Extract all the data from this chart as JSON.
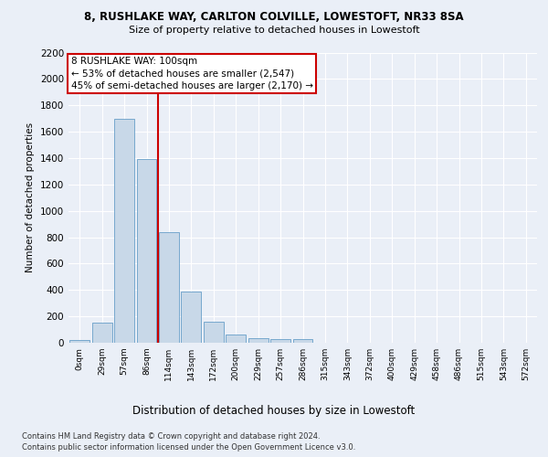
{
  "title1": "8, RUSHLAKE WAY, CARLTON COLVILLE, LOWESTOFT, NR33 8SA",
  "title2": "Size of property relative to detached houses in Lowestoft",
  "xlabel": "Distribution of detached houses by size in Lowestoft",
  "ylabel": "Number of detached properties",
  "footer1": "Contains HM Land Registry data © Crown copyright and database right 2024.",
  "footer2": "Contains public sector information licensed under the Open Government Licence v3.0.",
  "annotation_line1": "8 RUSHLAKE WAY: 100sqm",
  "annotation_line2": "← 53% of detached houses are smaller (2,547)",
  "annotation_line3": "45% of semi-detached houses are larger (2,170) →",
  "bar_labels": [
    "0sqm",
    "29sqm",
    "57sqm",
    "86sqm",
    "114sqm",
    "143sqm",
    "172sqm",
    "200sqm",
    "229sqm",
    "257sqm",
    "286sqm",
    "315sqm",
    "343sqm",
    "372sqm",
    "400sqm",
    "429sqm",
    "458sqm",
    "486sqm",
    "515sqm",
    "543sqm",
    "572sqm"
  ],
  "bar_values": [
    20,
    155,
    1700,
    1390,
    835,
    385,
    160,
    65,
    35,
    28,
    28,
    0,
    0,
    0,
    0,
    0,
    0,
    0,
    0,
    0,
    0
  ],
  "bar_color": "#c8d8e8",
  "bar_edge_color": "#5090c0",
  "red_line_x": 3.5,
  "ylim": [
    0,
    2200
  ],
  "yticks": [
    0,
    200,
    400,
    600,
    800,
    1000,
    1200,
    1400,
    1600,
    1800,
    2000,
    2200
  ],
  "bg_color": "#eaeff7",
  "plot_bg_color": "#eaeff7",
  "grid_color": "#ffffff",
  "annotation_box_color": "#ffffff",
  "annotation_box_edge": "#cc0000",
  "annotation_text_color": "#000000"
}
